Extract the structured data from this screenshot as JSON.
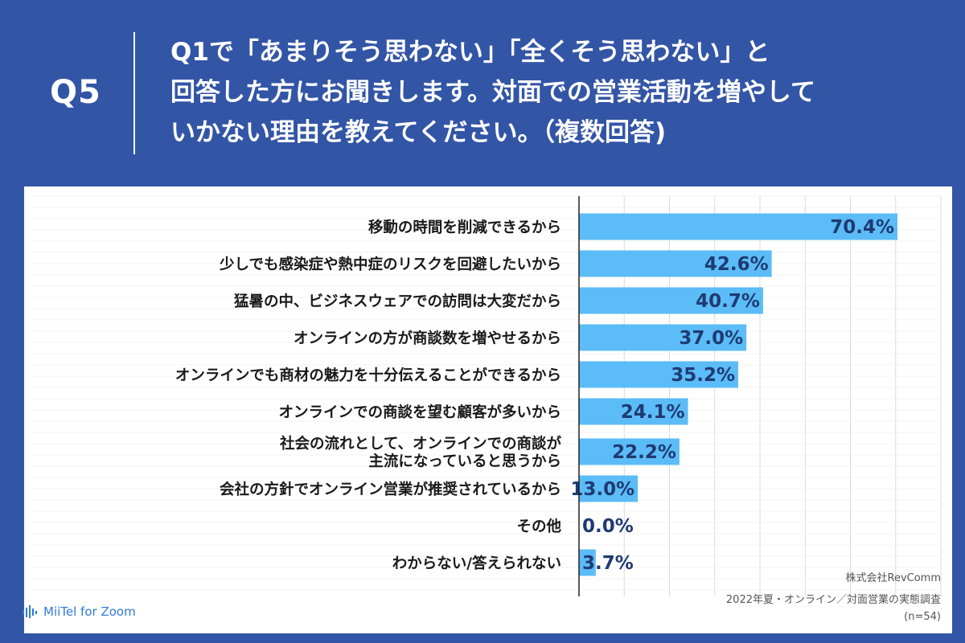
{
  "header": {
    "question_number": "Q5",
    "question_lines": [
      "Q1で「あまりそう思わない」「全くそう思わない」と",
      "回答した方にお聞きします。対面での営業活動を増やして",
      "いかない理由を教えてください。（複数回答)"
    ]
  },
  "chart_data": {
    "type": "bar",
    "orientation": "horizontal",
    "categories": [
      [
        "移動の時間を削減できるから"
      ],
      [
        "少しでも感染症や熱中症のリスクを回避したいから"
      ],
      [
        "猛暑の中、ビジネスウェアでの訪問は大変だから"
      ],
      [
        "オンラインの方が商談数を増やせるから"
      ],
      [
        "オンラインでも商材の魅力を十分伝えることができるから"
      ],
      [
        "オンラインでの商談を望む顧客が多いから"
      ],
      [
        "社会の流れとして、オンラインでの商談が",
        "主流になっていると思うから"
      ],
      [
        "会社の方針でオンライン営業が推奨されているから"
      ],
      [
        "その他"
      ],
      [
        "わからない/答えられない"
      ]
    ],
    "values": [
      70.4,
      42.6,
      40.7,
      37.0,
      35.2,
      24.1,
      22.2,
      13.0,
      0.0,
      3.7
    ],
    "value_labels": [
      "70.4%",
      "42.6%",
      "40.7%",
      "37.0%",
      "35.2%",
      "24.1%",
      "22.2%",
      "13.0%",
      "0.0%",
      "3.7%"
    ],
    "xlim": [
      0,
      80
    ],
    "grid": true,
    "bar_color": "#5bbcf7",
    "label_color": "#1f3a73"
  },
  "footer": {
    "company": "株式会社RevComm",
    "survey": "2022年夏・オンライン／対面営業の実態調査",
    "sample": "(n=54)"
  },
  "logo": {
    "icon": "audio-wave-icon",
    "text": "MiiTel for Zoom"
  }
}
